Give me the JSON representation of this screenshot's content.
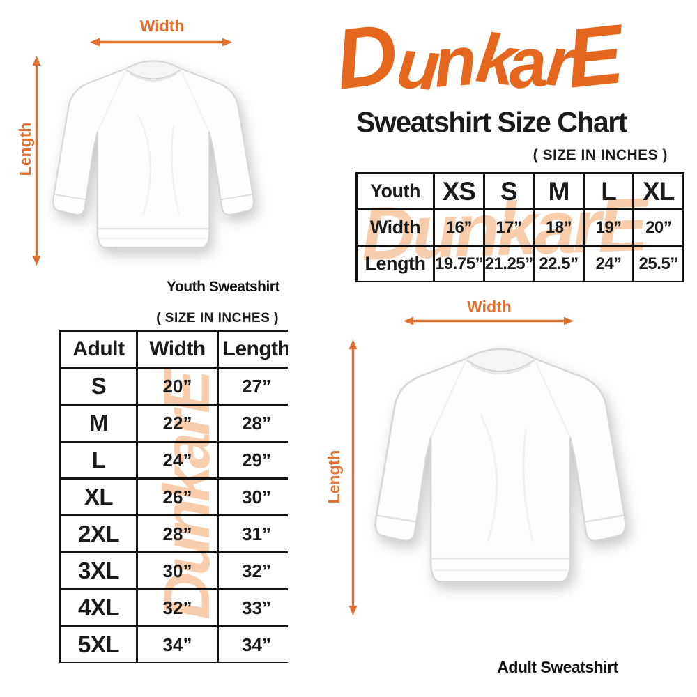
{
  "brand": {
    "name": "DunkarE",
    "colors": {
      "logo_orange": "#E5671E",
      "arrow_orange": "#E07030",
      "watermark_peach": "#F7CDAB",
      "text_black": "#1b1b1b"
    }
  },
  "header": {
    "title": "Sweatshirt Size Chart",
    "size_note": "( SIZE IN INCHES )"
  },
  "youth_figure": {
    "width_label": "Width",
    "length_label": "Length",
    "caption": "Youth Sweatshirt"
  },
  "adult_figure": {
    "width_label": "Width",
    "length_label": "Length",
    "caption": "Adult Sweatshirt"
  },
  "youth_table": {
    "corner_label": "Youth",
    "size_headers": [
      "XS",
      "S",
      "M",
      "L",
      "XL"
    ],
    "rows": [
      {
        "label": "Width",
        "values": [
          "16”",
          "17”",
          "18”",
          "19”",
          "20”"
        ]
      },
      {
        "label": "Length",
        "values": [
          "19.75”",
          "21.25”",
          "22.5”",
          "24”",
          "25.5”"
        ]
      }
    ]
  },
  "adult_table": {
    "size_note": "( SIZE IN INCHES )",
    "headers": [
      "Adult",
      "Width",
      "Length"
    ],
    "rows": [
      {
        "size": "S",
        "width": "20”",
        "length": "27”"
      },
      {
        "size": "M",
        "width": "22”",
        "length": "28”"
      },
      {
        "size": "L",
        "width": "24”",
        "length": "29”"
      },
      {
        "size": "XL",
        "width": "26”",
        "length": "30”"
      },
      {
        "size": "2XL",
        "width": "28”",
        "length": "31”"
      },
      {
        "size": "3XL",
        "width": "30”",
        "length": "32”"
      },
      {
        "size": "4XL",
        "width": "32”",
        "length": "33”"
      },
      {
        "size": "5XL",
        "width": "34”",
        "length": "34”"
      }
    ]
  }
}
